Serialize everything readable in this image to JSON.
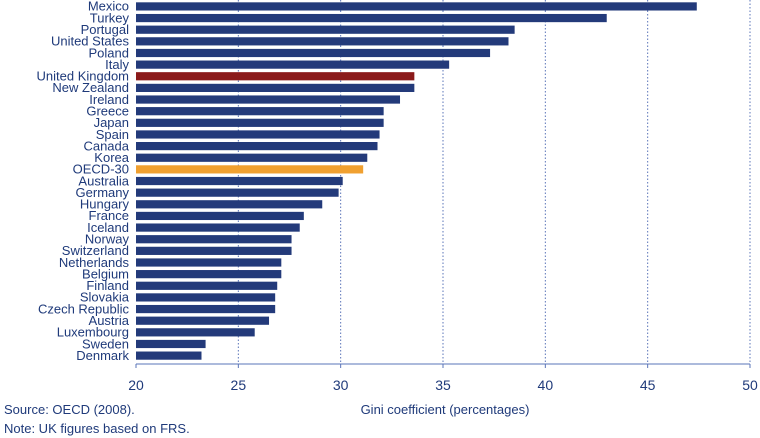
{
  "chart_data": {
    "type": "bar",
    "orientation": "horizontal",
    "title": "",
    "xlabel": "Gini coefficient (percentages)",
    "ylabel": "",
    "xlim": [
      20,
      50
    ],
    "xticks": [
      20,
      25,
      30,
      35,
      40,
      45,
      50
    ],
    "grid": "vertical dashed at 25–50",
    "legend": "none",
    "categories": [
      "Mexico",
      "Turkey",
      "Portugal",
      "United States",
      "Poland",
      "Italy",
      "United Kingdom",
      "New Zealand",
      "Ireland",
      "Greece",
      "Japan",
      "Spain",
      "Canada",
      "Korea",
      "OECD-30",
      "Australia",
      "Germany",
      "Hungary",
      "France",
      "Iceland",
      "Norway",
      "Switzerland",
      "Netherlands",
      "Belgium",
      "Finland",
      "Slovakia",
      "Czech Republic",
      "Austria",
      "Luxembourg",
      "Sweden",
      "Denmark"
    ],
    "values": [
      47.4,
      43.0,
      38.5,
      38.2,
      37.3,
      35.3,
      33.6,
      33.6,
      32.9,
      32.1,
      32.1,
      31.9,
      31.8,
      31.3,
      31.1,
      30.1,
      29.9,
      29.1,
      28.2,
      28.0,
      27.6,
      27.6,
      27.1,
      27.1,
      26.9,
      26.8,
      26.8,
      26.5,
      25.8,
      23.4,
      23.2
    ],
    "highlight": {
      "United Kingdom": "#8b1a1a",
      "OECD-30": "#f0a030"
    },
    "colors": {
      "bar": "#233a7a",
      "grid": "#5a74b8",
      "text": "#1f3a7a"
    }
  },
  "notes": {
    "source": "Source: OECD (2008).",
    "note": "Note: UK figures based on FRS."
  }
}
